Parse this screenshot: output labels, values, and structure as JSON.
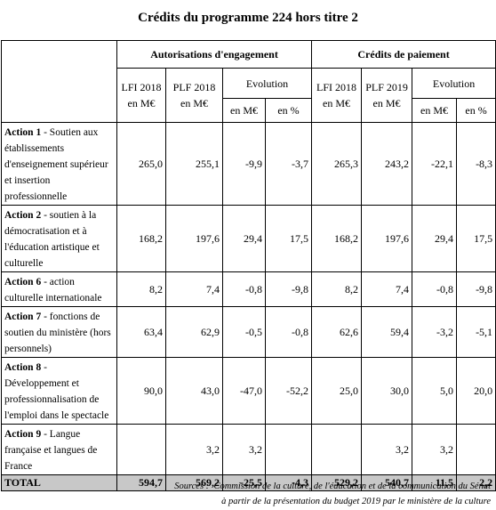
{
  "title": "Crédits du programme 224 hors titre 2",
  "table": {
    "groups": [
      "Autorisations d'engagement",
      "Crédits de paiement"
    ],
    "columns": [
      "LFI 2018 en M€",
      "PLF 2018 en M€",
      "Evolution",
      "LFI 2018 en M€",
      "PLF 2019 en M€",
      "Evolution"
    ],
    "subcolumns": [
      "en M€",
      "en %",
      "en M€",
      "en %"
    ],
    "rows": [
      {
        "action": "Action 1",
        "label": " - Soutien aux établissements d'enseignement supérieur et insertion professionnelle",
        "cells": [
          "265,0",
          "255,1",
          "-9,9",
          "-3,7",
          "265,3",
          "243,2",
          "-22,1",
          "-8,3"
        ]
      },
      {
        "action": "Action 2",
        "label": " - soutien à la démocratisation et à l'éducation artistique et culturelle",
        "cells": [
          "168,2",
          "197,6",
          "29,4",
          "17,5",
          "168,2",
          "197,6",
          "29,4",
          "17,5"
        ]
      },
      {
        "action": "Action 6",
        "label": " - action culturelle internationale",
        "cells": [
          "8,2",
          "7,4",
          "-0,8",
          "-9,8",
          "8,2",
          "7,4",
          "-0,8",
          "-9,8"
        ]
      },
      {
        "action": "Action 7",
        "label": " - fonctions de soutien du ministère (hors personnels)",
        "cells": [
          "63,4",
          "62,9",
          "-0,5",
          "-0,8",
          "62,6",
          "59,4",
          "-3,2",
          "-5,1"
        ]
      },
      {
        "action": "Action 8",
        "label": " - Développement et professionnalisation de l'emploi dans le spectacle",
        "cells": [
          "90,0",
          "43,0",
          "-47,0",
          "-52,2",
          "25,0",
          "30,0",
          "5,0",
          "20,0"
        ]
      },
      {
        "action": "Action 9",
        "label": " - Langue française et langues de France",
        "cells": [
          null,
          "3,2",
          "3,2",
          null,
          null,
          "3,2",
          "3,2",
          null
        ]
      }
    ],
    "total": {
      "label": "TOTAL",
      "cells": [
        "594,7",
        "569,2",
        "-25,5",
        "-4,3",
        "529,2",
        "540,7",
        "11,5",
        "2,2"
      ]
    }
  },
  "source": {
    "prefix": "Sources :",
    "line1": "Commission de la culture, de l'éducation et de la communication du Sénat",
    "line2": "à partir de la présentation du budget 2019 par le ministère de la culture"
  }
}
